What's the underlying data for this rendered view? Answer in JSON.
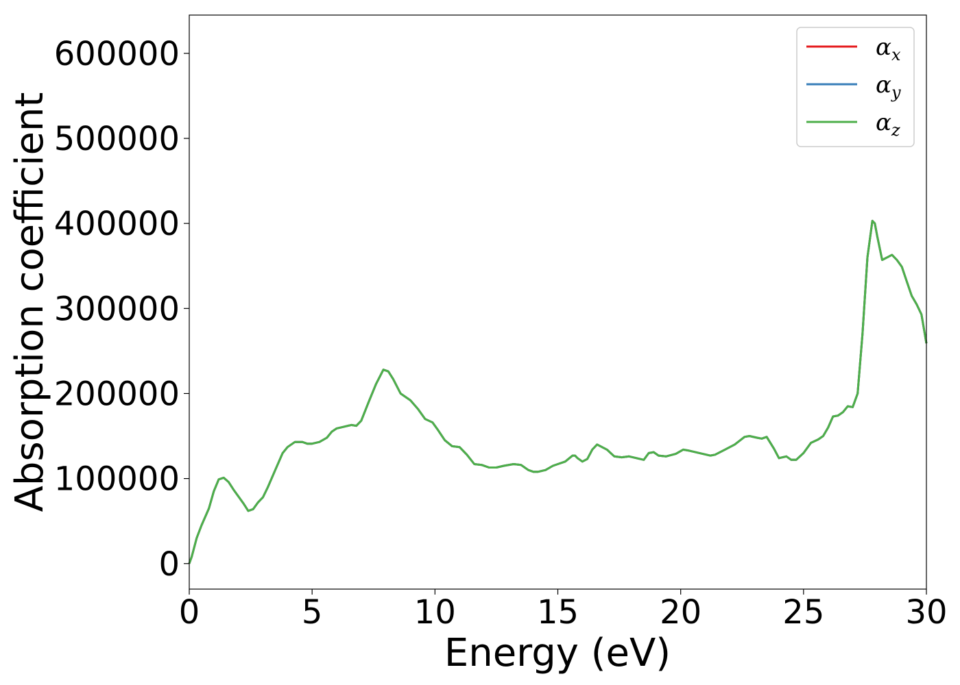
{
  "chart_data": {
    "type": "line",
    "title": "",
    "xlabel": "Energy (eV)",
    "ylabel": "Absorption coefficient",
    "xlim": [
      0,
      30
    ],
    "ylim": [
      -30000,
      645000
    ],
    "x_ticks": [
      "0",
      "5",
      "10",
      "15",
      "20",
      "25",
      "30"
    ],
    "y_ticks": [
      "0",
      "100000",
      "200000",
      "300000",
      "400000",
      "500000",
      "600000"
    ],
    "grid": false,
    "legend_position": "top-right",
    "series": [
      {
        "name": "αx",
        "symbol": "α",
        "subscript": "x",
        "color": "#e41a1c"
      },
      {
        "name": "αy",
        "symbol": "α",
        "subscript": "y",
        "color": "#377eb8"
      },
      {
        "name": "αz",
        "symbol": "α",
        "subscript": "z",
        "color": "#4daf4a"
      }
    ],
    "x": [
      0,
      0.1,
      0.3,
      0.5,
      0.8,
      1.0,
      1.2,
      1.4,
      1.6,
      1.8,
      2.0,
      2.2,
      2.4,
      2.6,
      2.8,
      3.0,
      3.2,
      3.5,
      3.8,
      4.0,
      4.3,
      4.6,
      4.8,
      5.0,
      5.3,
      5.6,
      5.8,
      6.0,
      6.3,
      6.6,
      6.8,
      7.0,
      7.3,
      7.6,
      7.9,
      8.1,
      8.3,
      8.6,
      9.0,
      9.3,
      9.6,
      9.9,
      10.1,
      10.4,
      10.7,
      11.0,
      11.3,
      11.6,
      11.9,
      12.2,
      12.5,
      12.8,
      13.2,
      13.5,
      13.8,
      14.0,
      14.2,
      14.5,
      14.8,
      15.0,
      15.3,
      15.6,
      15.7,
      15.8,
      16.0,
      16.2,
      16.4,
      16.6,
      16.8,
      17.0,
      17.3,
      17.6,
      17.9,
      18.2,
      18.5,
      18.7,
      18.9,
      19.1,
      19.4,
      19.8,
      20.1,
      20.3,
      20.6,
      20.9,
      21.2,
      21.4,
      21.8,
      22.2,
      22.6,
      22.8,
      23.1,
      23.3,
      23.5,
      23.8,
      24.0,
      24.3,
      24.5,
      24.7,
      25.0,
      25.3,
      25.6,
      25.8,
      26.0,
      26.2,
      26.4,
      26.6,
      26.8,
      27.0,
      27.2,
      27.4,
      27.6,
      27.8,
      27.9,
      28.0,
      28.2,
      28.4,
      28.6,
      28.8,
      29.0,
      29.2,
      29.4,
      29.6,
      29.8,
      30.0
    ],
    "values": [
      0,
      8000,
      30000,
      45000,
      65000,
      85000,
      99000,
      101000,
      96000,
      87000,
      79000,
      71000,
      62000,
      64000,
      72000,
      78000,
      90000,
      110000,
      130000,
      137000,
      143000,
      143000,
      141000,
      141000,
      143000,
      148000,
      155000,
      159000,
      161000,
      163000,
      162000,
      168000,
      190000,
      211000,
      228000,
      226000,
      217000,
      200000,
      192000,
      182000,
      170000,
      166000,
      158000,
      145000,
      138000,
      137000,
      128000,
      117000,
      116000,
      113000,
      113000,
      115000,
      117000,
      116000,
      110000,
      108000,
      108000,
      110000,
      115000,
      117000,
      120000,
      127000,
      127000,
      124000,
      120000,
      123000,
      134000,
      140000,
      137000,
      134000,
      126000,
      125000,
      126000,
      124000,
      122000,
      130000,
      131000,
      127000,
      126000,
      129000,
      134000,
      133000,
      131000,
      129000,
      127000,
      128000,
      134000,
      140000,
      149000,
      150000,
      148000,
      147000,
      149000,
      135000,
      124000,
      126000,
      122000,
      122000,
      130000,
      142000,
      146000,
      150000,
      160000,
      173000,
      174000,
      178000,
      185000,
      184000,
      200000,
      270000,
      360000,
      403000,
      400000,
      385000,
      357000,
      360000,
      363000,
      357000,
      349000,
      332000,
      315000,
      305000,
      293000,
      259000
    ]
  }
}
